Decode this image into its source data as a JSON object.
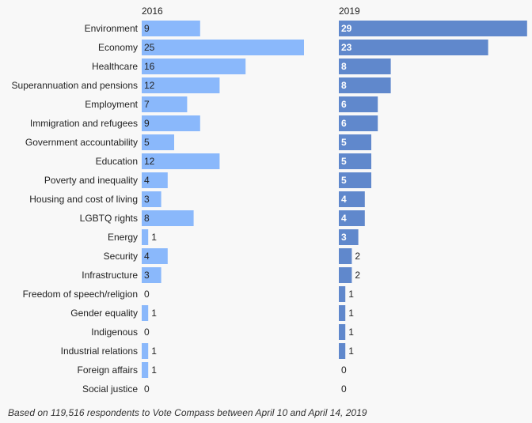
{
  "chart_data": {
    "type": "bar",
    "orientation": "horizontal",
    "categories": [
      "Environment",
      "Economy",
      "Healthcare",
      "Superannuation and pensions",
      "Employment",
      "Immigration and refugees",
      "Government accountability",
      "Education",
      "Poverty and inequality",
      "Housing and cost of living",
      "LGBTQ rights",
      "Energy",
      "Security",
      "Infrastructure",
      "Freedom of speech/religion",
      "Gender equality",
      "Indigenous",
      "Industrial relations",
      "Foreign affairs",
      "Social justice"
    ],
    "series": [
      {
        "name": "2016",
        "color": "#8ab8fb",
        "values": [
          9,
          25,
          16,
          12,
          7,
          9,
          5,
          12,
          4,
          3,
          8,
          1,
          4,
          3,
          0,
          1,
          0,
          1,
          1,
          0
        ]
      },
      {
        "name": "2019",
        "color": "#6088cc",
        "values": [
          29,
          23,
          8,
          8,
          6,
          6,
          5,
          5,
          5,
          4,
          4,
          3,
          2,
          2,
          1,
          1,
          1,
          1,
          0,
          0
        ]
      }
    ],
    "grid": false,
    "legend": "none"
  },
  "footnote": "Based on 119,516 respondents to Vote Compass between April 10 and April 14, 2019"
}
